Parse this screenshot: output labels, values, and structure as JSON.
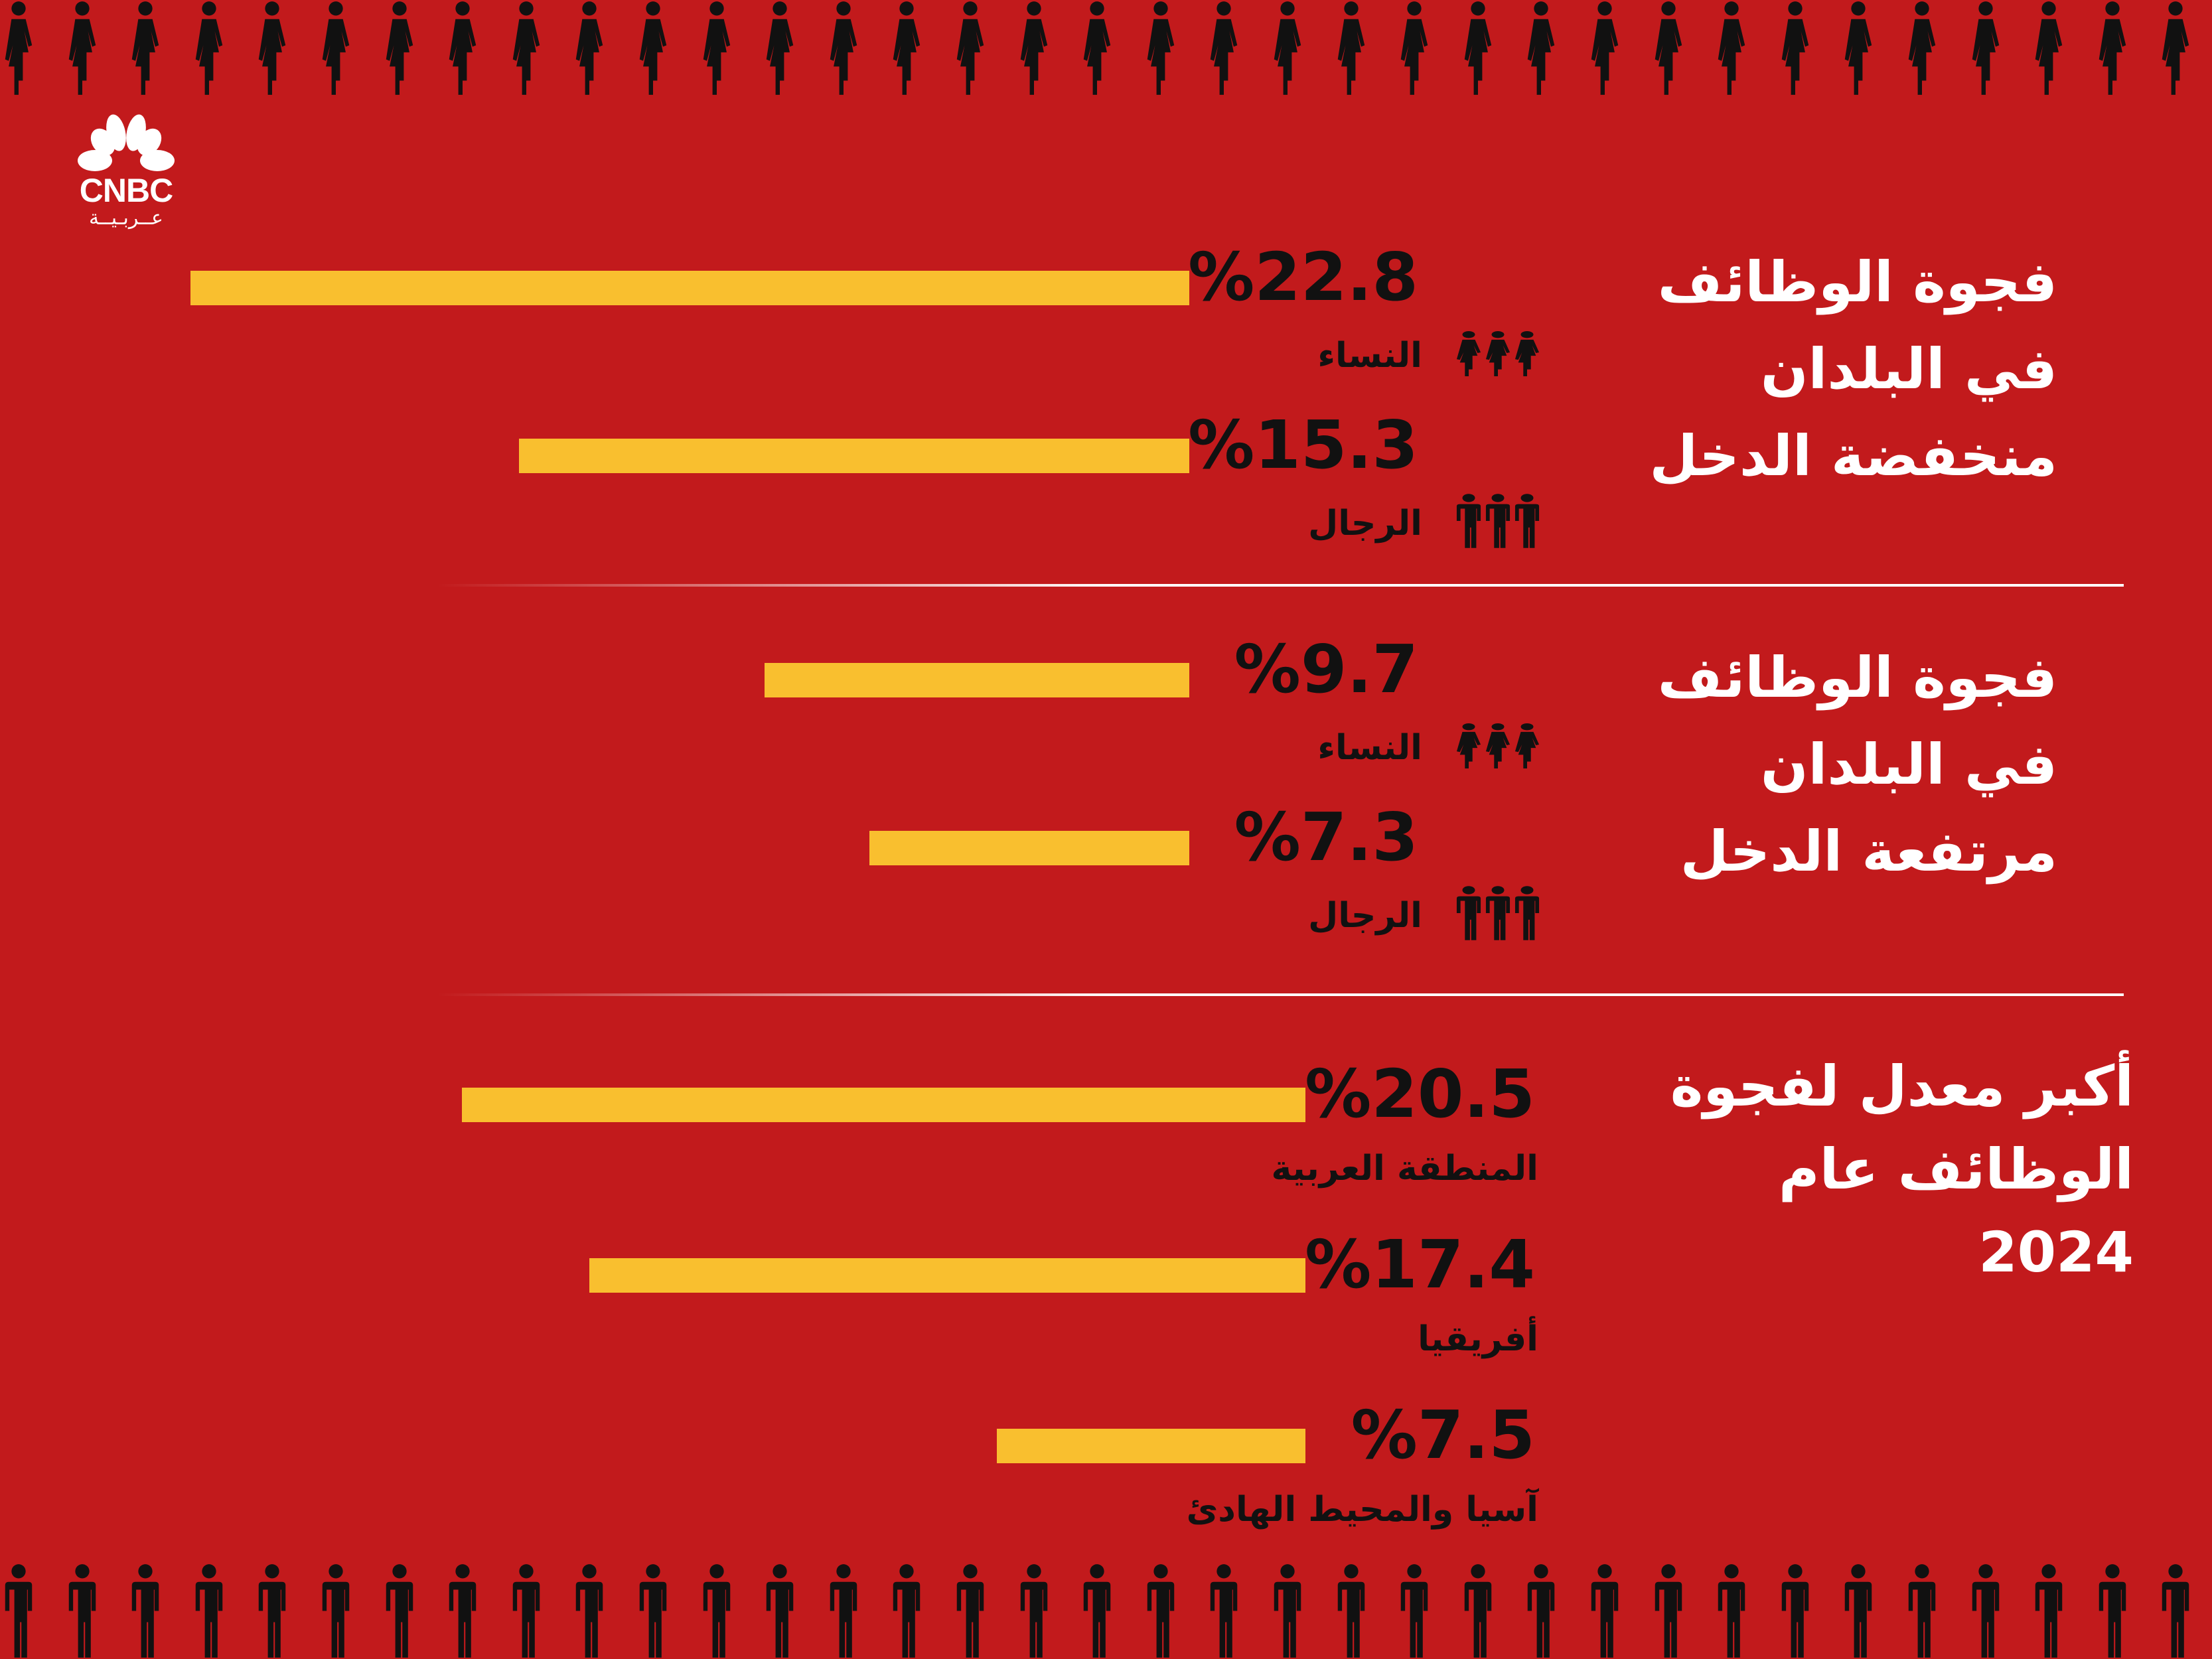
{
  "brand": {
    "name": "CNBC",
    "subtitle": "عــربـيــة",
    "colors": {
      "background": "#c21a1c",
      "bar": "#f9bf2f",
      "text_dark": "#111111",
      "text_light": "#ffffff"
    }
  },
  "decor": {
    "top_row_icon": "woman-icon",
    "bottom_row_icon": "man-icon"
  },
  "chart_data": [
    {
      "type": "bar",
      "orientation": "horizontal",
      "title": "فجوة الوظائف في البلدان منخفضة الدخل",
      "title_lines": [
        "فجوة الوظائف",
        "في البلدان",
        "منخفضة الدخل"
      ],
      "categories": [
        "النساء",
        "الرجال"
      ],
      "values": [
        22.8,
        15.3
      ],
      "value_labels": [
        "%22.8",
        "%15.3"
      ],
      "icons": [
        "woman-icon",
        "man-icon"
      ],
      "unit": "%"
    },
    {
      "type": "bar",
      "orientation": "horizontal",
      "title": "فجوة الوظائف في البلدان مرتفعة الدخل",
      "title_lines": [
        "فجوة الوظائف",
        "في البلدان",
        "مرتفعة الدخل"
      ],
      "categories": [
        "النساء",
        "الرجال"
      ],
      "values": [
        9.7,
        7.3
      ],
      "value_labels": [
        "%9.7",
        "%7.3"
      ],
      "icons": [
        "woman-icon",
        "man-icon"
      ],
      "unit": "%"
    },
    {
      "type": "bar",
      "orientation": "horizontal",
      "title": "أكبر معدل لفجوة الوظائف عام 2024",
      "title_lines": [
        "أكبر معدل لفجوة",
        "الوظائف عام",
        "2024"
      ],
      "categories": [
        "المنطقة العربية",
        "أفريقيا",
        "آسيا والمحيط الهادئ"
      ],
      "values": [
        20.5,
        17.4,
        7.5
      ],
      "value_labels": [
        "%20.5",
        "%17.4",
        "%7.5"
      ],
      "unit": "%"
    }
  ]
}
